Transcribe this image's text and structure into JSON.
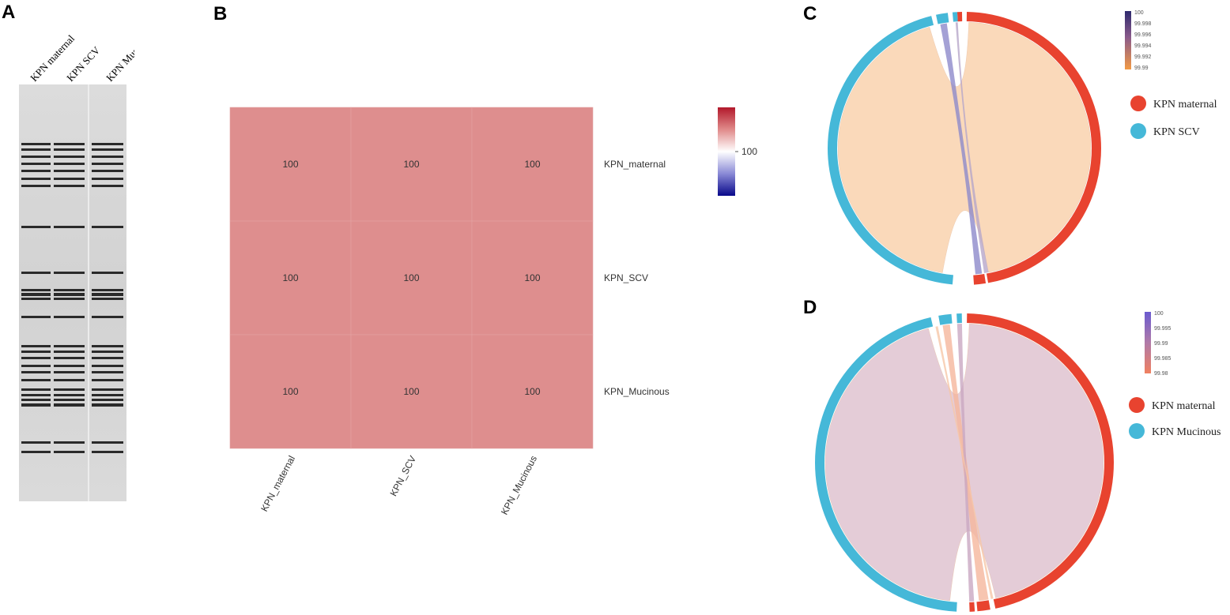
{
  "panels": {
    "A": {
      "letter": "A",
      "lanes": [
        "KPN maternal",
        "KPN SCV",
        "KPN Mucinous"
      ]
    },
    "B": {
      "letter": "B"
    },
    "C": {
      "letter": "C",
      "legend": [
        "KPN maternal",
        "KPN SCV"
      ],
      "colorbar_ticks": [
        "100",
        "99.998",
        "99.996",
        "99.994",
        "99.992",
        "99.99"
      ]
    },
    "D": {
      "letter": "D",
      "legend": [
        "KPN maternal",
        "KPN Mucinous"
      ],
      "colorbar_ticks": [
        "100",
        "99.995",
        "99.99",
        "99.985",
        "99.98"
      ]
    }
  },
  "colors": {
    "maternal": "#e8432f",
    "scv": "#45b8d8",
    "heat_cell": "#de8e8e",
    "chord_c": "#fad7b6",
    "chord_d": "#e3c9d5"
  },
  "chart_data": [
    {
      "type": "heatmap",
      "rows": [
        "KPN_maternal",
        "KPN_SCV",
        "KPN_Mucinous"
      ],
      "columns": [
        "KPN_maternal",
        "KPN_SCV",
        "KPN_Mucinous"
      ],
      "values": [
        [
          100,
          100,
          100
        ],
        [
          100,
          100,
          100
        ],
        [
          100,
          100,
          100
        ]
      ],
      "colorbar_label": "100"
    },
    {
      "type": "chord",
      "panel": "C",
      "sectors": [
        "KPN maternal",
        "KPN SCV"
      ],
      "identity_range": [
        99.99,
        100
      ]
    },
    {
      "type": "chord",
      "panel": "D",
      "sectors": [
        "KPN maternal",
        "KPN Mucinous"
      ],
      "identity_range": [
        99.98,
        100
      ]
    }
  ]
}
